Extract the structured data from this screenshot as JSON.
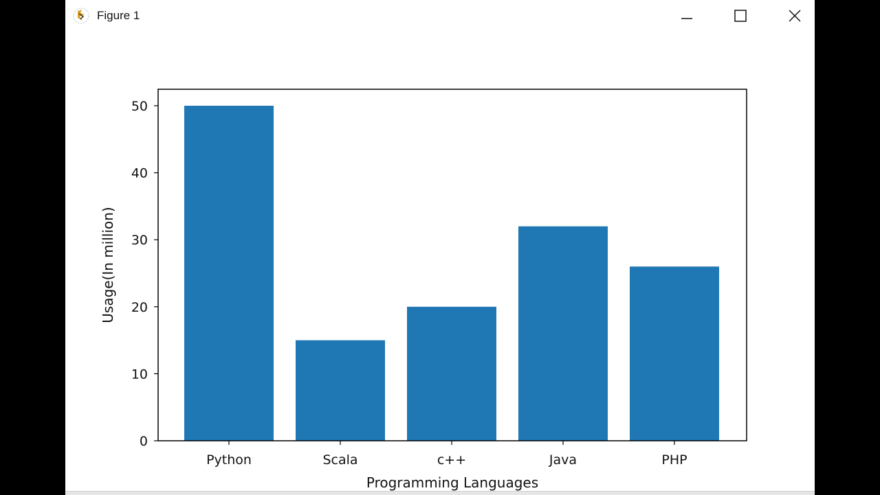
{
  "window": {
    "title": "Figure 1",
    "icon": "matplotlib-icon",
    "controls": {
      "minimize": "minimize-icon",
      "maximize": "maximize-icon",
      "close": "close-icon"
    }
  },
  "colors": {
    "bar": "#1f77b4",
    "axis": "#000000",
    "background": "#ffffff"
  },
  "chart_data": {
    "type": "bar",
    "title": "",
    "categories": [
      "Python",
      "Scala",
      "c++",
      "Java",
      "PHP"
    ],
    "values": [
      50,
      15,
      20,
      32,
      26
    ],
    "xlabel": "Programming Languages",
    "ylabel": "Usage(In million)",
    "yticks": [
      0,
      10,
      20,
      30,
      40,
      50
    ],
    "ylim": [
      0,
      52.5
    ],
    "grid": false,
    "legend": null
  }
}
